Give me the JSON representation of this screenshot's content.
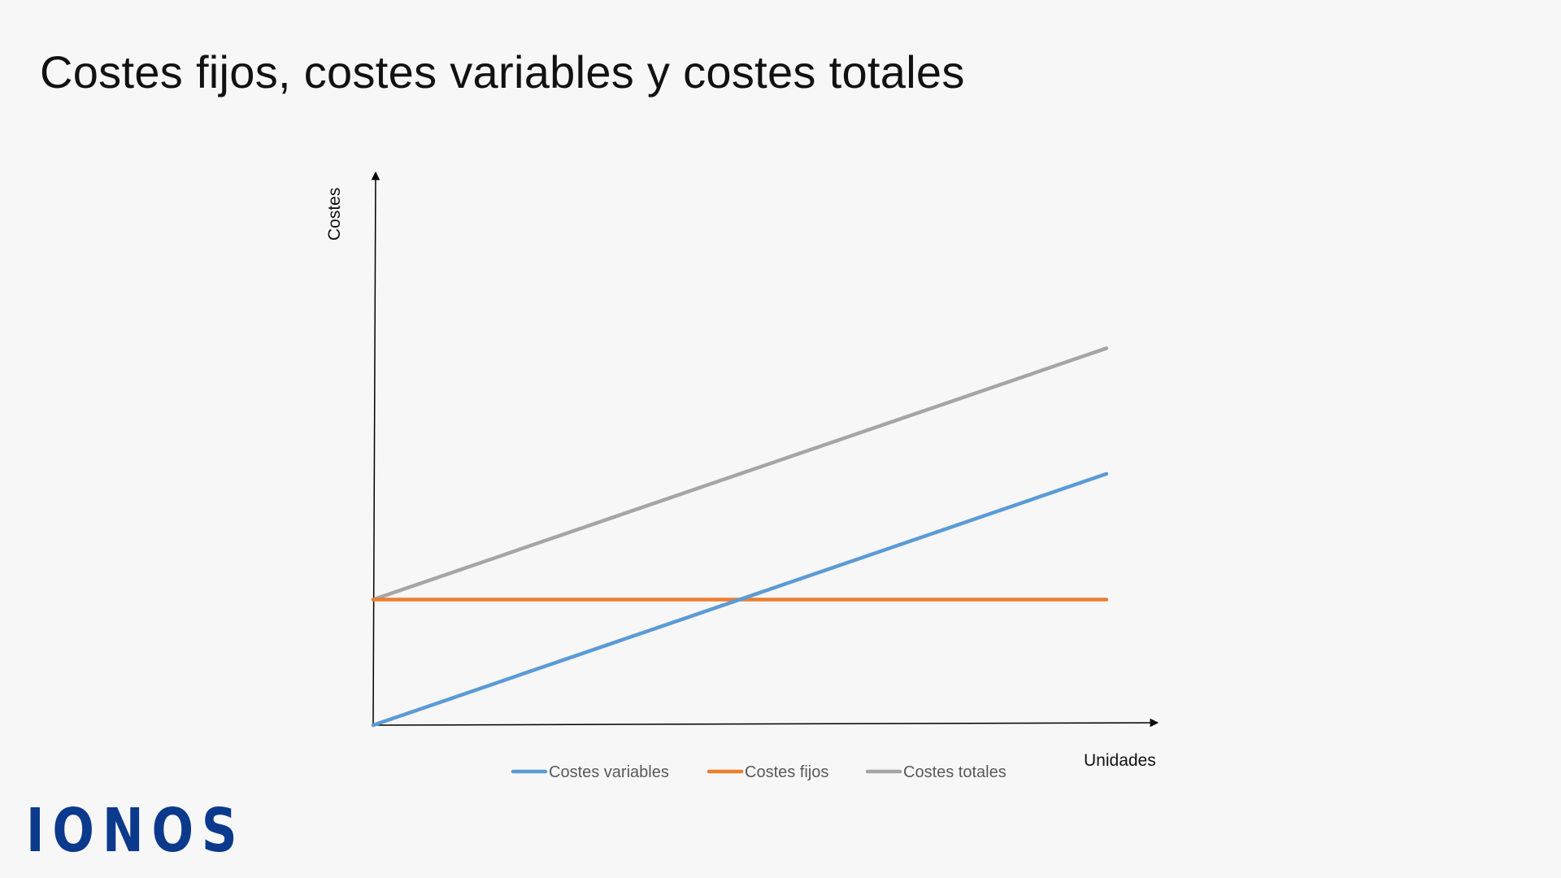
{
  "title": "Costes fijos, costes variables y costes totales",
  "logo_text": "IONOS",
  "colors": {
    "background": "#f7f7f7",
    "axis": "#000000",
    "variable": "#5b9bd5",
    "fixed": "#ed7d31",
    "total": "#a5a5a5",
    "logo": "#0b3a8c"
  },
  "chart_data": {
    "type": "line",
    "title": "",
    "xlabel": "Unidades",
    "ylabel": "Costes",
    "x": [
      0,
      1
    ],
    "xlim": [
      0,
      1.07
    ],
    "ylim": [
      0,
      2.2
    ],
    "grid": false,
    "axis_tick_labels": false,
    "legend_position": "bottom",
    "series": [
      {
        "name": "Costes variables",
        "color": "#5b9bd5",
        "values": [
          0,
          1
        ]
      },
      {
        "name": "Costes fijos",
        "color": "#ed7d31",
        "values": [
          0.5,
          0.5
        ]
      },
      {
        "name": "Costes totales",
        "color": "#a5a5a5",
        "values": [
          0.5,
          1.5
        ]
      }
    ]
  }
}
